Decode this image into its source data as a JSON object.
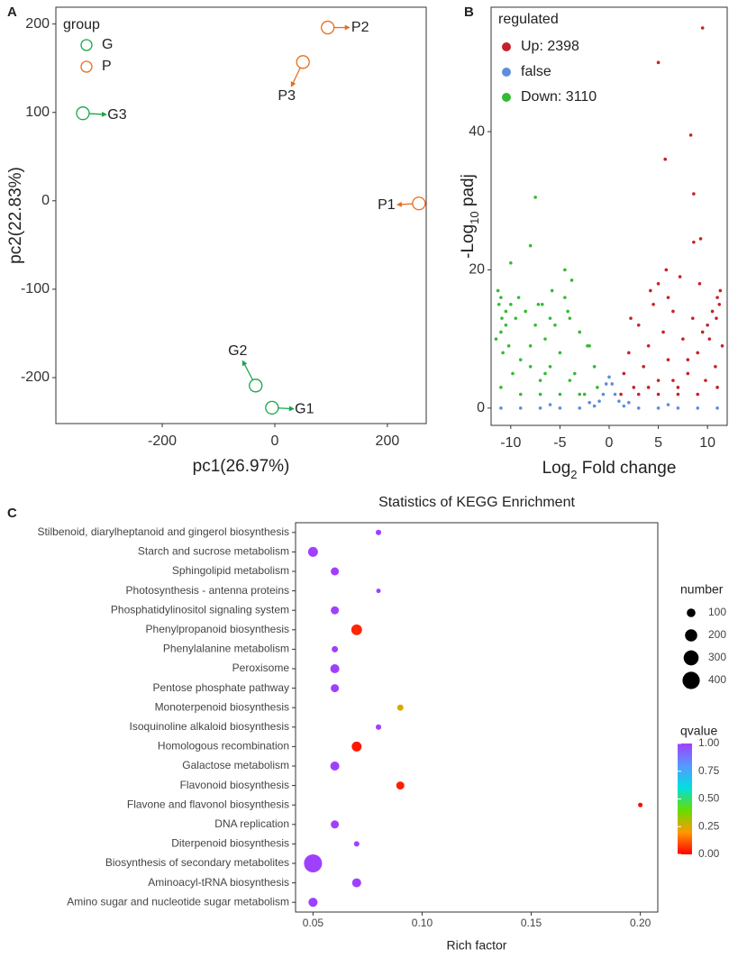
{
  "chart_data": [
    {
      "type": "scatter",
      "panel": "A",
      "xlabel": "pc1(26.97%)",
      "ylabel": "pc2(22.83%)",
      "xlim": [
        -389,
        269
      ],
      "xticks": [
        -200,
        0,
        200
      ],
      "ylim": [
        -252,
        219
      ],
      "yticks": [
        -200,
        -100,
        0,
        100,
        200
      ],
      "grid": true,
      "marker": "open",
      "legend": "top-left",
      "legend_title": "group",
      "series": [
        {
          "name": "G",
          "color": "#1aa64b",
          "x": [
            -5,
            -34,
            -341
          ],
          "values": [
            -234,
            -209,
            99
          ],
          "labels": [
            "G1",
            "G2",
            "G3"
          ]
        },
        {
          "name": "P",
          "color": "#e86e1c",
          "x": [
            256,
            94,
            50
          ],
          "values": [
            -3,
            196,
            157
          ],
          "labels": [
            "P1",
            "P2",
            "P3"
          ]
        }
      ]
    },
    {
      "type": "scatter",
      "panel": "B",
      "xlabel": [
        "Log",
        "2",
        " Fold change"
      ],
      "ylabel": [
        "-Log",
        "10",
        " padj"
      ],
      "xlim": [
        -12,
        12
      ],
      "xticks": [
        -10,
        -5,
        0,
        5,
        10
      ],
      "ylim": [
        -2.5,
        58
      ],
      "yticks": [
        0,
        20,
        40
      ],
      "grid": false,
      "marker": "filled",
      "legend": "top-left",
      "legend_title": "regulated",
      "series": [
        {
          "name": "Up: 2398",
          "color": "#c8202a",
          "x": [
            1.2,
            1.5,
            2,
            2.5,
            3,
            3.5,
            4,
            4.5,
            5,
            5.5,
            6,
            6.5,
            7,
            7.5,
            8,
            8.5,
            9,
            9.5,
            10,
            10.5,
            11,
            11.3,
            11.5,
            10.8,
            9.8,
            3,
            5,
            7,
            9,
            11,
            4.2,
            6,
            5.8,
            7.2,
            9.2,
            9.5,
            5,
            8.3,
            5.7,
            8.6,
            9.3,
            8.6,
            5,
            2.2,
            10.2,
            10.9,
            11.2,
            8,
            6.5,
            4
          ],
          "values": [
            2,
            5,
            8,
            3,
            12,
            6,
            9,
            15,
            4,
            11,
            7,
            14,
            3,
            10,
            5,
            13,
            8,
            11,
            12,
            14,
            16,
            17,
            9,
            6,
            4,
            2,
            2,
            2,
            2,
            3,
            17,
            16,
            20,
            19,
            18,
            55,
            50,
            39.5,
            36,
            31,
            24.5,
            24,
            18,
            13,
            10,
            13,
            15,
            7,
            4,
            3
          ]
        },
        {
          "name": "false",
          "color": "#5b8fdc",
          "x": [
            -11,
            -9,
            -7,
            -5,
            -3,
            -2,
            -1.5,
            -1,
            -0.6,
            -0.3,
            0,
            0.3,
            0.6,
            1,
            1.5,
            2,
            3,
            5,
            7,
            9,
            11,
            -6,
            6
          ],
          "values": [
            0,
            0,
            0,
            0,
            0,
            0.8,
            0.3,
            1,
            2,
            3.5,
            4.5,
            3.5,
            2,
            1,
            0.3,
            0.8,
            0,
            0,
            0,
            0,
            0,
            0.5,
            0.5
          ]
        },
        {
          "name": "Down: 3110",
          "color": "#33bb33",
          "x": [
            -1.2,
            -1.5,
            -2,
            -2.5,
            -3,
            -3.5,
            -4,
            -4.5,
            -5,
            -5.5,
            -6,
            -6.5,
            -7,
            -7.5,
            -8,
            -8.5,
            -9,
            -9.5,
            -10,
            -10.5,
            -11,
            -11.3,
            -11.5,
            -10.8,
            -9.8,
            -3,
            -5,
            -7,
            -9,
            -11,
            -4.2,
            -6,
            -5.8,
            -7.2,
            -9.2,
            -7.5,
            -8,
            -4.5,
            -10,
            -3.8,
            -10.5,
            -11,
            -6.8,
            -2.2,
            -10.2,
            -10.9,
            -11.2,
            -8,
            -6.5,
            -4
          ],
          "values": [
            3,
            6,
            9,
            2,
            11,
            5,
            13,
            16,
            8,
            12,
            6,
            10,
            4,
            12,
            9,
            14,
            7,
            13,
            15,
            12,
            16,
            17,
            10,
            8,
            5,
            2,
            2,
            2,
            2,
            3,
            14,
            13,
            17,
            15,
            16,
            30.5,
            23.5,
            20,
            21,
            18.5,
            14,
            11,
            15,
            9,
            9,
            13,
            15,
            6,
            5,
            4
          ]
        }
      ]
    },
    {
      "type": "bubble",
      "panel": "C",
      "title": "Statistics of KEGG Enrichment",
      "xlabel": "Rich factor",
      "xlim": [
        0.042,
        0.208
      ],
      "xticks": [
        0.05,
        {
          "value": 0.1,
          "label": "0.10"
        },
        0.15,
        {
          "value": 0.2,
          "label": "0.20"
        }
      ],
      "categories": [
        "Stilbenoid, diarylheptanoid and gingerol biosynthesis",
        "Starch and sucrose metabolism",
        "Sphingolipid metabolism",
        "Photosynthesis - antenna proteins",
        "Phosphatidylinositol signaling system",
        "Phenylpropanoid biosynthesis",
        "Phenylalanine metabolism",
        "Peroxisome",
        "Pentose phosphate pathway",
        "Monoterpenoid biosynthesis",
        "Isoquinoline alkaloid biosynthesis",
        "Homologous recombination",
        "Galactose metabolism",
        "Flavonoid biosynthesis",
        "Flavone and flavonol biosynthesis",
        "DNA replication",
        "Diterpenoid biosynthesis",
        "Biosynthesis of secondary metabolites",
        "Aminoacyl-tRNA biosynthesis",
        "Amino sugar and nucleotide sugar metabolism"
      ],
      "values": [
        0.08,
        0.05,
        0.06,
        0.08,
        0.06,
        0.07,
        0.06,
        0.06,
        0.06,
        0.09,
        0.08,
        0.07,
        0.06,
        0.09,
        0.2,
        0.06,
        0.07,
        0.05,
        0.07,
        0.05
      ],
      "sizes": [
        40,
        130,
        88,
        27,
        88,
        155,
        53,
        110,
        88,
        53,
        40,
        130,
        110,
        88,
        27,
        88,
        40,
        434,
        110,
        110
      ],
      "qvalues": [
        1,
        1,
        1,
        1,
        1,
        0.05,
        1,
        1,
        1,
        0.25,
        1,
        0.03,
        1,
        0.04,
        0.01,
        1,
        1,
        1,
        1,
        1
      ],
      "size_legend": {
        "title": "number",
        "values": [
          100,
          200,
          300,
          400
        ]
      },
      "color_legend": {
        "title": "qvalue",
        "lim": [
          0,
          1
        ],
        "ticks": [
          {
            "value": 0,
            "label": "0.00"
          },
          0.25,
          {
            "value": 0.5,
            "label": "0.50"
          },
          0.75,
          {
            "value": 1,
            "label": "1.00"
          }
        ],
        "colors": [
          "#ff0000",
          "#ff9900",
          "#66dd00",
          "#00e0e0",
          "#5599ff",
          "#a040ff"
        ]
      }
    }
  ]
}
